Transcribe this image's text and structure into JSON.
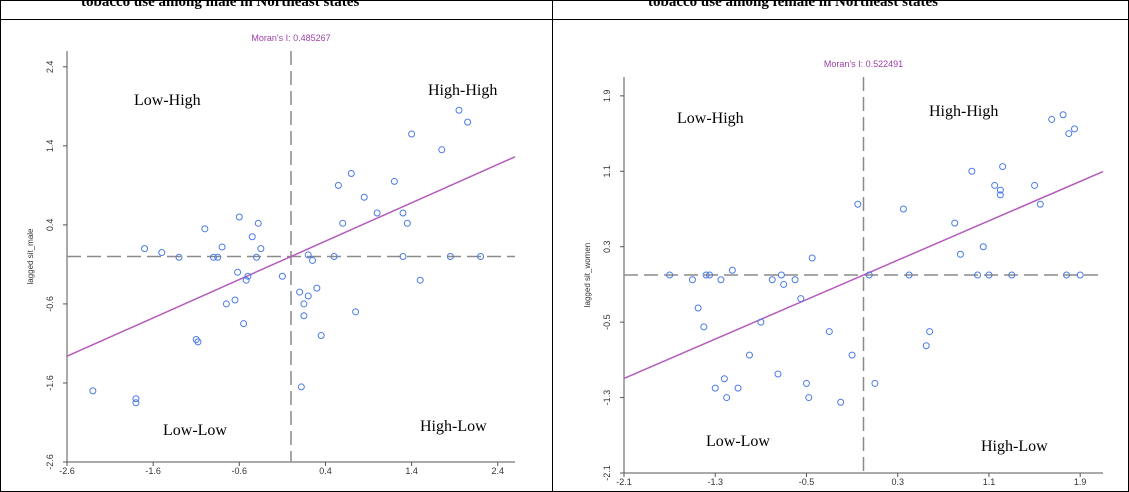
{
  "panels": [
    {
      "header": "tobacco use among male in Northeast states",
      "chart_data": {
        "type": "scatter",
        "title": "Moran's I: 0.485267",
        "xlabel": "",
        "ylabel": "lagged sit_male",
        "xlim": [
          -2.6,
          2.6
        ],
        "ylim": [
          -2.6,
          2.6
        ],
        "xticks": [
          "-2.6",
          "-1.6",
          "-0.6",
          "0.4",
          "1.4",
          "2.4"
        ],
        "yticks": [
          "-2.6",
          "-1.6",
          "-0.6",
          "0.4",
          "1.4",
          "2.4"
        ],
        "mean_x": 0,
        "mean_y": 0,
        "regression": {
          "slope": 0.485267,
          "intercept": 0
        },
        "quadrants": {
          "top_left": "Low-High",
          "top_right": "High-High",
          "bottom_left": "Low-Low",
          "bottom_right": "High-Low"
        },
        "points": [
          [
            -2.3,
            -1.7
          ],
          [
            -1.8,
            -1.8
          ],
          [
            -1.8,
            -1.85
          ],
          [
            -1.7,
            0.1
          ],
          [
            -1.5,
            0.05
          ],
          [
            -1.3,
            -0.01
          ],
          [
            -1.1,
            -1.05
          ],
          [
            -1.08,
            -1.08
          ],
          [
            -1.0,
            0.35
          ],
          [
            -0.9,
            -0.01
          ],
          [
            -0.85,
            -0.01
          ],
          [
            -0.8,
            0.12
          ],
          [
            -0.75,
            -0.6
          ],
          [
            -0.65,
            -0.55
          ],
          [
            -0.62,
            -0.2
          ],
          [
            -0.6,
            0.5
          ],
          [
            -0.55,
            -0.85
          ],
          [
            -0.52,
            -0.3
          ],
          [
            -0.5,
            -0.25
          ],
          [
            -0.45,
            0.25
          ],
          [
            -0.4,
            -0.01
          ],
          [
            -0.35,
            0.1
          ],
          [
            -0.38,
            0.42
          ],
          [
            -0.1,
            -0.25
          ],
          [
            0.1,
            -0.45
          ],
          [
            0.12,
            -1.65
          ],
          [
            0.15,
            -0.6
          ],
          [
            0.15,
            -0.75
          ],
          [
            0.2,
            -0.5
          ],
          [
            0.25,
            -0.05
          ],
          [
            0.3,
            -0.4
          ],
          [
            0.35,
            -1.0
          ],
          [
            0.5,
            0.0
          ],
          [
            0.55,
            0.9
          ],
          [
            0.6,
            0.42
          ],
          [
            0.7,
            1.05
          ],
          [
            0.75,
            -0.7
          ],
          [
            0.85,
            0.75
          ],
          [
            1.0,
            0.55
          ],
          [
            1.2,
            0.95
          ],
          [
            1.3,
            0.55
          ],
          [
            1.35,
            0.42
          ],
          [
            1.4,
            1.55
          ],
          [
            1.5,
            -0.3
          ],
          [
            1.75,
            1.35
          ],
          [
            1.85,
            0.0
          ],
          [
            1.95,
            1.85
          ],
          [
            2.05,
            1.7
          ],
          [
            2.2,
            0.0
          ],
          [
            1.3,
            0.0
          ],
          [
            0.2,
            0.02
          ]
        ]
      }
    },
    {
      "header": "tobacco use among female in Northeast states",
      "chart_data": {
        "type": "scatter",
        "title": "Moran's I: 0.522491",
        "xlabel": "",
        "ylabel": "lagged sit_women",
        "xlim": [
          -2.1,
          2.1
        ],
        "ylim": [
          -2.1,
          2.1
        ],
        "xticks": [
          "-2.1",
          "-1.3",
          "-0.5",
          "0.3",
          "1.1",
          "1.9"
        ],
        "yticks": [
          "-2.1",
          "-1.3",
          "-0.5",
          "0.3",
          "1.1",
          "1.9"
        ],
        "mean_x": 0,
        "mean_y": 0,
        "regression": {
          "slope": 0.522491,
          "intercept": 0
        },
        "quadrants": {
          "top_left": "Low-High",
          "top_right": "High-High",
          "bottom_left": "Low-Low",
          "bottom_right": "High-Low"
        },
        "points": [
          [
            -1.7,
            0.0
          ],
          [
            -1.5,
            -0.05
          ],
          [
            -1.45,
            -0.35
          ],
          [
            -1.4,
            -0.55
          ],
          [
            -1.38,
            0.0
          ],
          [
            -1.35,
            0.0
          ],
          [
            -1.3,
            -1.2
          ],
          [
            -1.25,
            -0.05
          ],
          [
            -1.22,
            -1.1
          ],
          [
            -1.2,
            -1.3
          ],
          [
            -1.15,
            0.05
          ],
          [
            -1.1,
            -1.2
          ],
          [
            -1.0,
            -0.85
          ],
          [
            -0.9,
            -0.5
          ],
          [
            -0.8,
            -0.05
          ],
          [
            -0.75,
            -1.05
          ],
          [
            -0.72,
            0.0
          ],
          [
            -0.7,
            -0.1
          ],
          [
            -0.6,
            -0.05
          ],
          [
            -0.55,
            -0.25
          ],
          [
            -0.5,
            -1.15
          ],
          [
            -0.48,
            -1.3
          ],
          [
            -0.45,
            0.18
          ],
          [
            -0.3,
            -0.6
          ],
          [
            -0.2,
            -1.35
          ],
          [
            -0.1,
            -0.85
          ],
          [
            -0.05,
            0.75
          ],
          [
            0.05,
            0.0
          ],
          [
            0.1,
            -1.15
          ],
          [
            0.35,
            0.7
          ],
          [
            0.4,
            0.0
          ],
          [
            0.55,
            -0.75
          ],
          [
            0.58,
            -0.6
          ],
          [
            0.8,
            0.55
          ],
          [
            0.85,
            0.22
          ],
          [
            0.95,
            1.1
          ],
          [
            1.0,
            0.0
          ],
          [
            1.05,
            0.3
          ],
          [
            1.1,
            0.0
          ],
          [
            1.15,
            0.95
          ],
          [
            1.2,
            0.9
          ],
          [
            1.2,
            0.85
          ],
          [
            1.22,
            1.15
          ],
          [
            1.3,
            0.0
          ],
          [
            1.5,
            0.95
          ],
          [
            1.55,
            0.75
          ],
          [
            1.65,
            1.65
          ],
          [
            1.75,
            1.7
          ],
          [
            1.8,
            1.5
          ],
          [
            1.85,
            1.55
          ],
          [
            1.78,
            0.0
          ],
          [
            1.9,
            0.0
          ]
        ]
      }
    }
  ],
  "colors": {
    "regression": "#b55bbb",
    "points": "#4b7be5",
    "mean_lines": "#8a8a8a",
    "moran": "#9b3fa6",
    "axis": "#555555"
  }
}
